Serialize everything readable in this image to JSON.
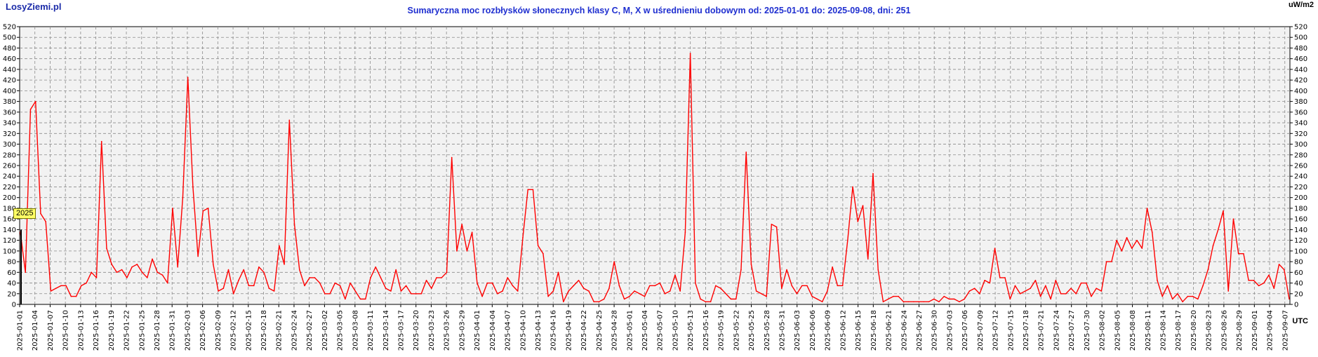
{
  "header": {
    "brand": "LosyZiemi.pl",
    "unit_label": "uW/m2",
    "utc_label": "UTC",
    "year_badge": "2025"
  },
  "chart_data": {
    "type": "line",
    "title": "Sumaryczna moc rozbłysków słonecznych klasy C, M, X w uśrednieniu dobowym od: 2025-01-01 do: 2025-09-08, dni: 251",
    "xlabel": "",
    "ylabel": "uW/m2",
    "ylim": [
      0,
      520
    ],
    "y_ticks": [
      0,
      20,
      40,
      60,
      80,
      100,
      120,
      140,
      160,
      180,
      200,
      220,
      240,
      260,
      280,
      300,
      320,
      340,
      360,
      380,
      400,
      420,
      440,
      460,
      480,
      500,
      520
    ],
    "grid": true,
    "line_color": "#ff0000",
    "x_tick_labels": [
      "2025-01-01",
      "2025-01-04",
      "2025-01-07",
      "2025-01-10",
      "2025-01-13",
      "2025-01-16",
      "2025-01-19",
      "2025-01-22",
      "2025-01-25",
      "2025-01-28",
      "2025-01-31",
      "2025-02-03",
      "2025-02-06",
      "2025-02-09",
      "2025-02-12",
      "2025-02-15",
      "2025-02-18",
      "2025-02-21",
      "2025-02-24",
      "2025-02-27",
      "2025-03-02",
      "2025-03-05",
      "2025-03-08",
      "2025-03-11",
      "2025-03-14",
      "2025-03-17",
      "2025-03-20",
      "2025-03-23",
      "2025-03-26",
      "2025-03-29",
      "2025-04-01",
      "2025-04-04",
      "2025-04-07",
      "2025-04-10",
      "2025-04-13",
      "2025-04-16",
      "2025-04-19",
      "2025-04-22",
      "2025-04-25",
      "2025-04-28",
      "2025-05-01",
      "2025-05-04",
      "2025-05-07",
      "2025-05-10",
      "2025-05-13",
      "2025-05-16",
      "2025-05-19",
      "2025-05-22",
      "2025-05-25",
      "2025-05-28",
      "2025-05-31",
      "2025-06-03",
      "2025-06-06",
      "2025-06-09",
      "2025-06-12",
      "2025-06-15",
      "2025-06-18",
      "2025-06-21",
      "2025-06-24",
      "2025-06-27",
      "2025-06-30",
      "2025-07-03",
      "2025-07-06",
      "2025-07-09",
      "2025-07-12",
      "2025-07-15",
      "2025-07-18",
      "2025-07-21",
      "2025-07-24",
      "2025-07-27",
      "2025-07-30",
      "2025-08-02",
      "2025-08-05",
      "2025-08-08",
      "2025-08-11",
      "2025-08-14",
      "2025-08-17",
      "2025-08-20",
      "2025-08-23",
      "2025-08-26",
      "2025-08-29",
      "2025-09-01",
      "2025-09-04",
      "2025-09-07"
    ],
    "x_start": "2025-01-01",
    "x_end": "2025-09-08",
    "series": [
      {
        "values": [
          135,
          60,
          365,
          380,
          170,
          155,
          25,
          30,
          35,
          35,
          15,
          15,
          35,
          40,
          60,
          50,
          305,
          105,
          75,
          60,
          65,
          50,
          70,
          75,
          60,
          50,
          85,
          60,
          55,
          40,
          180,
          70,
          200,
          425,
          220,
          90,
          175,
          180,
          75,
          25,
          30,
          65,
          20,
          45,
          65,
          35,
          35,
          70,
          60,
          30,
          25,
          110,
          75,
          345,
          150,
          65,
          35,
          50,
          50,
          40,
          20,
          20,
          40,
          35,
          10,
          40,
          25,
          10,
          10,
          50,
          70,
          50,
          30,
          25,
          65,
          25,
          35,
          20,
          20,
          20,
          45,
          30,
          50,
          50,
          60,
          275,
          100,
          150,
          100,
          135,
          40,
          15,
          40,
          40,
          20,
          25,
          50,
          35,
          25,
          125,
          215,
          215,
          110,
          95,
          15,
          25,
          60,
          5,
          25,
          35,
          45,
          30,
          25,
          5,
          5,
          10,
          30,
          80,
          35,
          10,
          15,
          25,
          20,
          15,
          35,
          35,
          40,
          20,
          25,
          55,
          25,
          135,
          470,
          40,
          10,
          5,
          5,
          35,
          30,
          20,
          10,
          10,
          65,
          285,
          75,
          25,
          20,
          15,
          150,
          145,
          30,
          65,
          35,
          20,
          35,
          35,
          15,
          10,
          5,
          25,
          70,
          35,
          35,
          120,
          220,
          155,
          185,
          85,
          245,
          65,
          5,
          10,
          15,
          15,
          5,
          5,
          5,
          5,
          5,
          5,
          10,
          5,
          15,
          10,
          10,
          5,
          10,
          25,
          30,
          20,
          45,
          40,
          105,
          50,
          50,
          10,
          35,
          20,
          25,
          30,
          45,
          15,
          35,
          10,
          45,
          20,
          20,
          30,
          20,
          40,
          40,
          15,
          30,
          25,
          80,
          80,
          120,
          100,
          125,
          105,
          120,
          105,
          180,
          135,
          45,
          15,
          35,
          10,
          20,
          5,
          15,
          15,
          10,
          35,
          65,
          110,
          140,
          175,
          25,
          160,
          95,
          95,
          45,
          45,
          35,
          40,
          55,
          30,
          75,
          65,
          10
        ]
      }
    ]
  }
}
